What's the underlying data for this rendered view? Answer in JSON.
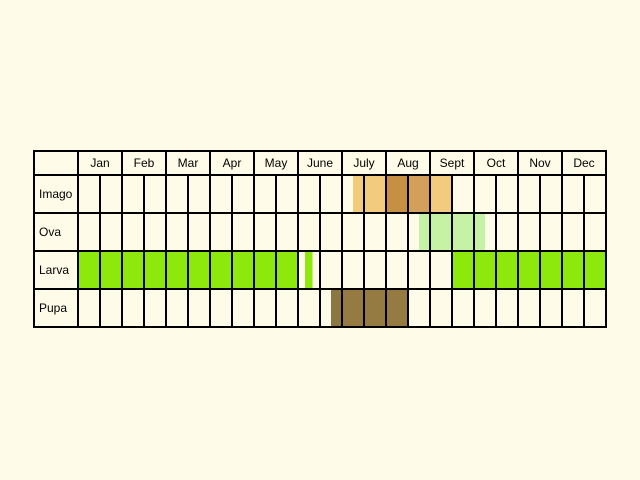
{
  "chart_data": {
    "type": "table",
    "months": [
      "Jan",
      "Feb",
      "Mar",
      "Apr",
      "May",
      "June",
      "July",
      "Aug",
      "Sept",
      "Oct",
      "Nov",
      "Dec"
    ],
    "rows": [
      {
        "label": "Imago",
        "segments": [
          {
            "start": 6.25,
            "end": 7.0,
            "color": "#f2cb7e"
          },
          {
            "start": 7.0,
            "end": 7.5,
            "color": "#c68f41"
          },
          {
            "start": 7.5,
            "end": 8.0,
            "color": "#d3a05b"
          },
          {
            "start": 8.0,
            "end": 8.5,
            "color": "#f2cb7e"
          }
        ]
      },
      {
        "label": "Ova",
        "segments": [
          {
            "start": 7.75,
            "end": 9.25,
            "color": "#c6f2a6"
          }
        ]
      },
      {
        "label": "Larva",
        "segments": [
          {
            "start": 0.0,
            "end": 5.0,
            "color": "#8de90c"
          },
          {
            "start": 5.16,
            "end": 5.33,
            "color": "#8de90c"
          },
          {
            "start": 8.5,
            "end": 12.0,
            "color": "#8de90c"
          }
        ]
      },
      {
        "label": "Pupa",
        "segments": [
          {
            "start": 5.75,
            "end": 6.0,
            "color": "#8d7740"
          },
          {
            "start": 6.0,
            "end": 7.5,
            "color": "#957a41"
          }
        ]
      }
    ]
  }
}
